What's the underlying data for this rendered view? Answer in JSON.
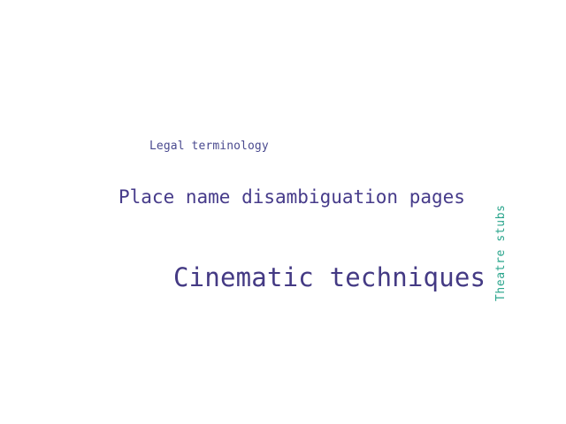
{
  "word_cloud": {
    "words": [
      {
        "text": "Legal terminology",
        "color": "#4a4a8f"
      },
      {
        "text": "Place name disambiguation pages",
        "color": "#463b8a"
      },
      {
        "text": "Cinematic techniques",
        "color": "#443a84"
      },
      {
        "text": "Theatre stubs",
        "color": "#2aa58c",
        "orientation": "vertical"
      }
    ]
  }
}
